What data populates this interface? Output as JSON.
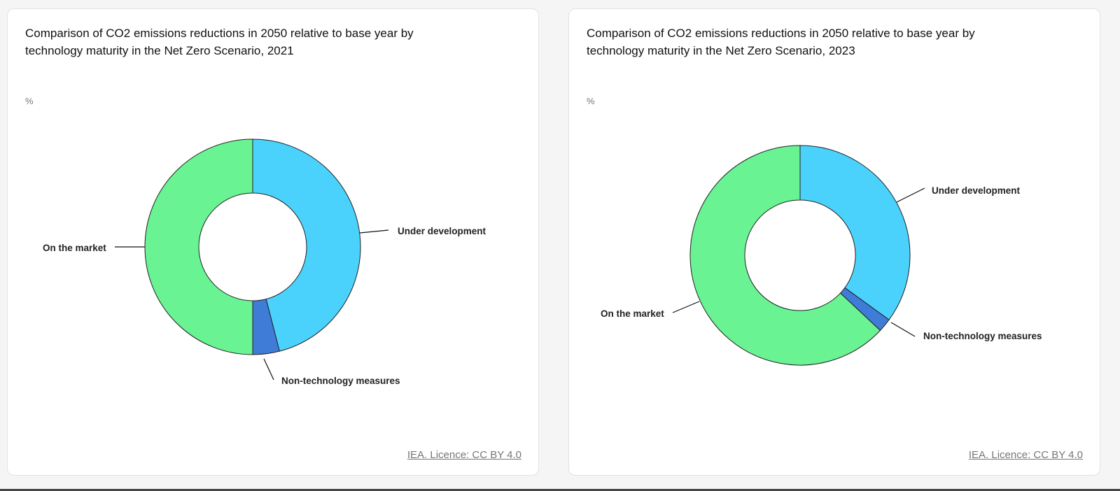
{
  "licence_text": "IEA. Licence: CC BY 4.0",
  "colors": {
    "on_the_market": "#69f393",
    "under_development": "#4ad2fd",
    "non_technology_measures": "#3f7cd8",
    "outline": "#222222"
  },
  "chart_data": [
    {
      "type": "pie",
      "donut": true,
      "title": "Comparison of CO2 emissions reductions in 2050 relative to base year by technology maturity in the Net Zero Scenario, 2021",
      "unit": "%",
      "categories": [
        "Under development",
        "Non-technology measures",
        "On the market"
      ],
      "values": [
        46,
        4,
        50
      ]
    },
    {
      "type": "pie",
      "donut": true,
      "title": "Comparison of CO2 emissions reductions in 2050 relative to base year by technology maturity in the Net Zero Scenario, 2023",
      "unit": "%",
      "categories": [
        "Under development",
        "Non-technology measures",
        "On the market"
      ],
      "values": [
        35,
        2,
        63
      ]
    }
  ]
}
